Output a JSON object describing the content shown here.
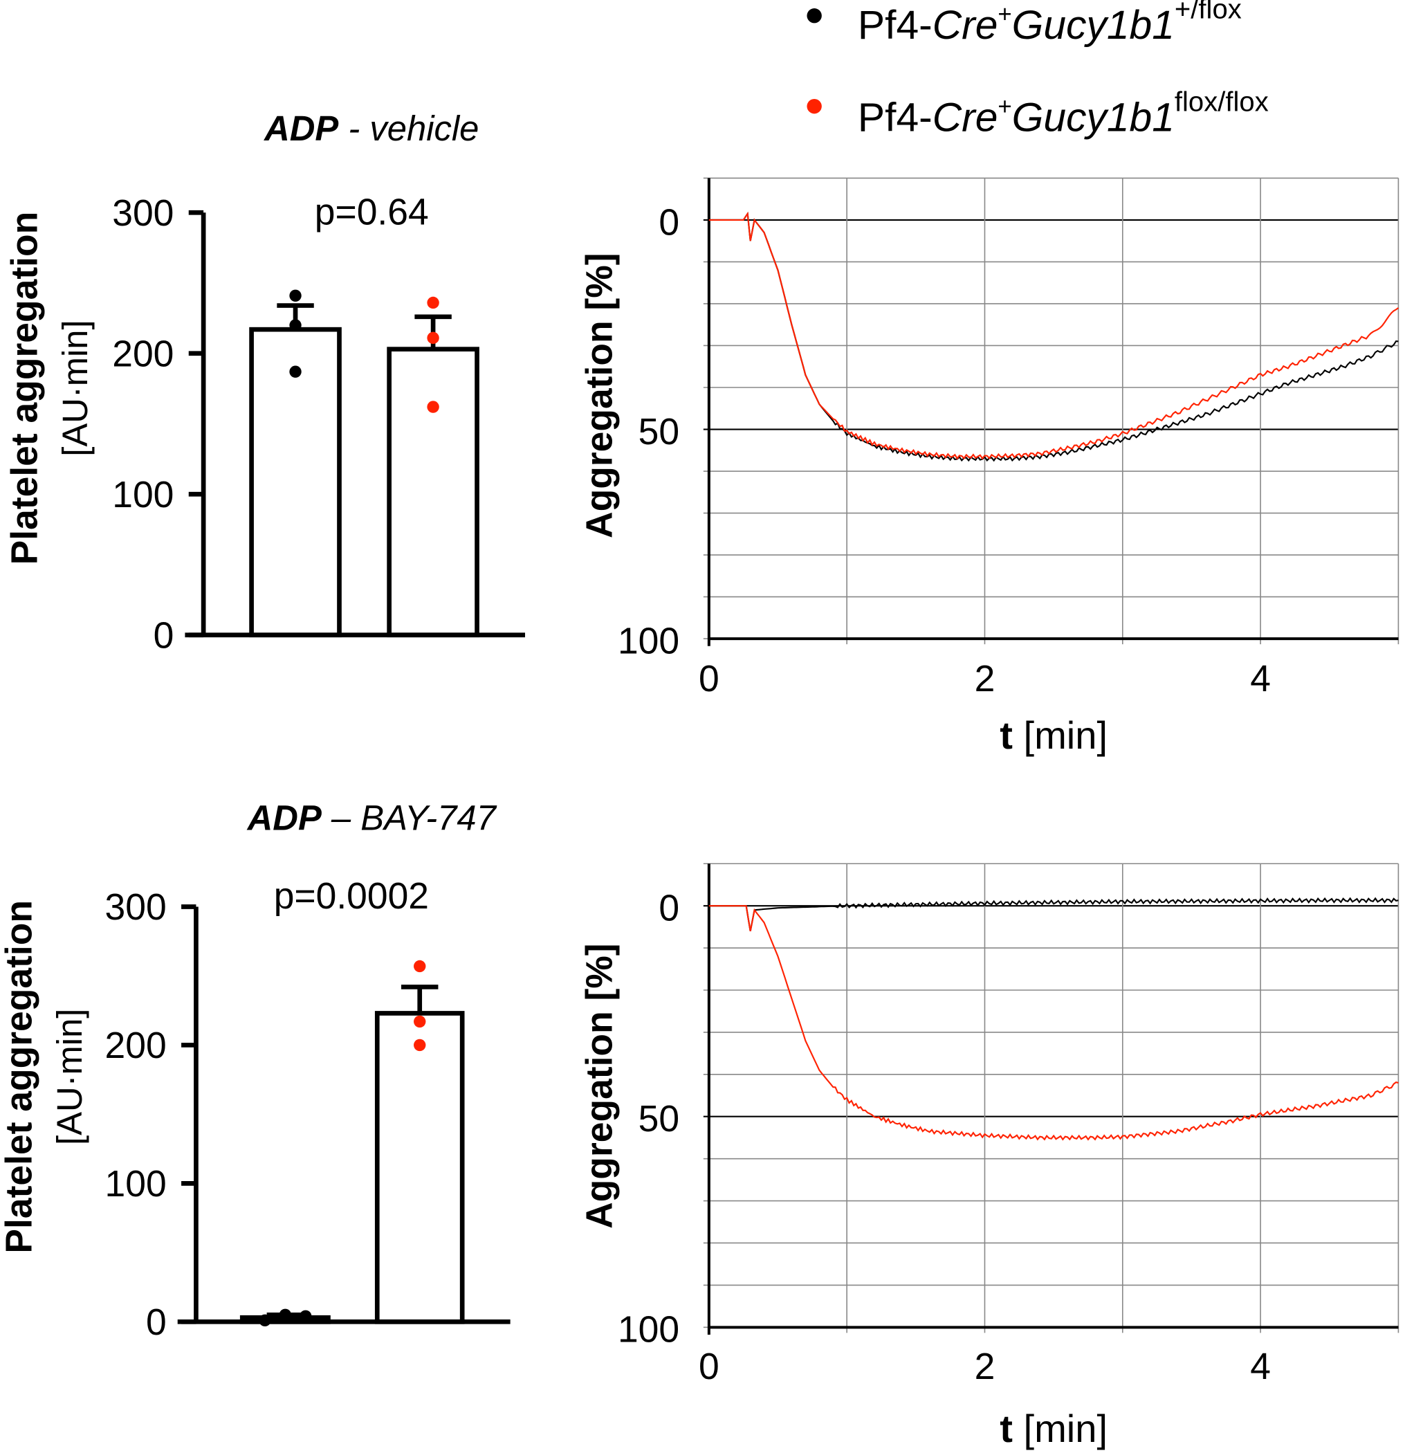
{
  "legend": {
    "items": [
      {
        "prefix": "Pf4-",
        "cre": "Cre",
        "plus": "+",
        "gene": "Gucy1b1",
        "allele": "+/flox",
        "color": "#000000"
      },
      {
        "prefix": "Pf4-",
        "cre": "Cre",
        "plus": "+",
        "gene": "Gucy1b1",
        "allele": "flox/flox",
        "color": "#ff2200"
      }
    ]
  },
  "chart_data": [
    {
      "type": "bar",
      "title_bold": "ADP",
      "title_rest": " - vehicle",
      "pvalue": "p=0.64",
      "ylabel": "Platelet aggregation",
      "ylabel2": "[AU·min]",
      "ylim": [
        0,
        300
      ],
      "yticks": [
        "0",
        "100",
        "200",
        "300"
      ],
      "categories": [
        "Pf4-Cre+Gucy1b1+/flox",
        "Pf4-Cre+Gucy1b1flox/flox"
      ],
      "values": [
        217,
        203
      ],
      "error_top": [
        234,
        226
      ],
      "points": [
        [
          241,
          220,
          187
        ],
        [
          236,
          211,
          162
        ]
      ],
      "colors": [
        "#000000",
        "#ff2200"
      ]
    },
    {
      "type": "line",
      "xlabel_bold": "t",
      "xlabel_rest": " [min]",
      "ylabel": "Aggregation [%]",
      "xlim": [
        0,
        5
      ],
      "ylim": [
        -10,
        100
      ],
      "y_inverted": true,
      "xticks": [
        "0",
        "2",
        "4"
      ],
      "yticks": [
        "0",
        "50",
        "100"
      ],
      "grid": true,
      "series": [
        {
          "name": "Pf4-Cre+Gucy1b1+/flox",
          "color": "#000000",
          "points": [
            [
              0,
              0
            ],
            [
              0.25,
              0
            ],
            [
              0.28,
              -1.5
            ],
            [
              0.3,
              5
            ],
            [
              0.33,
              0
            ],
            [
              0.4,
              3
            ],
            [
              0.5,
              12
            ],
            [
              0.6,
              25
            ],
            [
              0.7,
              37
            ],
            [
              0.8,
              44
            ],
            [
              0.9,
              48
            ],
            [
              1.0,
              51
            ],
            [
              1.2,
              54
            ],
            [
              1.4,
              55.5
            ],
            [
              1.6,
              56.5
            ],
            [
              1.8,
              57
            ],
            [
              2.0,
              57
            ],
            [
              2.2,
              57
            ],
            [
              2.4,
              56.5
            ],
            [
              2.6,
              55.5
            ],
            [
              2.8,
              54
            ],
            [
              3.0,
              52.5
            ],
            [
              3.2,
              50.5
            ],
            [
              3.4,
              48.5
            ],
            [
              3.6,
              46.5
            ],
            [
              3.8,
              44
            ],
            [
              4.0,
              41.5
            ],
            [
              4.2,
              39
            ],
            [
              4.4,
              37
            ],
            [
              4.6,
              35
            ],
            [
              4.8,
              32.5
            ],
            [
              5.0,
              29
            ]
          ]
        },
        {
          "name": "Pf4-Cre+Gucy1b1flox/flox",
          "color": "#ff2200",
          "points": [
            [
              0,
              0
            ],
            [
              0.25,
              0
            ],
            [
              0.28,
              -1.5
            ],
            [
              0.3,
              5
            ],
            [
              0.33,
              0
            ],
            [
              0.4,
              3
            ],
            [
              0.5,
              12
            ],
            [
              0.6,
              25
            ],
            [
              0.7,
              37
            ],
            [
              0.8,
              44
            ],
            [
              0.9,
              47.5
            ],
            [
              1.0,
              50.5
            ],
            [
              1.2,
              53.5
            ],
            [
              1.4,
              55
            ],
            [
              1.6,
              56
            ],
            [
              1.8,
              56.5
            ],
            [
              2.0,
              56.5
            ],
            [
              2.2,
              56.3
            ],
            [
              2.4,
              55.8
            ],
            [
              2.6,
              54.5
            ],
            [
              2.8,
              53
            ],
            [
              3.0,
              51
            ],
            [
              3.2,
              48.5
            ],
            [
              3.4,
              46
            ],
            [
              3.6,
              43
            ],
            [
              3.8,
              40
            ],
            [
              4.0,
              37
            ],
            [
              4.2,
              35
            ],
            [
              4.4,
              32.5
            ],
            [
              4.6,
              30
            ],
            [
              4.8,
              27.5
            ],
            [
              5.0,
              21
            ]
          ]
        }
      ]
    },
    {
      "type": "bar",
      "title_bold": "ADP",
      "title_rest": " – BAY-747",
      "pvalue": "p=0.0002",
      "ylabel": "Platelet aggregation",
      "ylabel2": "[AU·min]",
      "ylim": [
        0,
        300
      ],
      "yticks": [
        "0",
        "100",
        "200",
        "300"
      ],
      "categories": [
        "Pf4-Cre+Gucy1b1+/flox",
        "Pf4-Cre+Gucy1b1flox/flox"
      ],
      "values": [
        3,
        223
      ],
      "error_top": [
        5,
        242
      ],
      "points": [
        [
          1,
          5,
          4
        ],
        [
          257,
          217,
          200
        ]
      ],
      "colors": [
        "#000000",
        "#ff2200"
      ]
    },
    {
      "type": "line",
      "xlabel_bold": "t",
      "xlabel_rest": " [min]",
      "ylabel": "Aggregation [%]",
      "xlim": [
        0,
        5
      ],
      "ylim": [
        -10,
        100
      ],
      "y_inverted": true,
      "xticks": [
        "0",
        "2",
        "4"
      ],
      "yticks": [
        "0",
        "50",
        "100"
      ],
      "grid": true,
      "series": [
        {
          "name": "Pf4-Cre+Gucy1b1+/flox",
          "color": "#000000",
          "points": [
            [
              0,
              0
            ],
            [
              0.27,
              0
            ],
            [
              0.3,
              6
            ],
            [
              0.33,
              1
            ],
            [
              0.5,
              0.5
            ],
            [
              1.0,
              0
            ],
            [
              1.5,
              -0.3
            ],
            [
              2.0,
              -0.6
            ],
            [
              2.5,
              -0.8
            ],
            [
              3.0,
              -1
            ],
            [
              3.5,
              -1.1
            ],
            [
              4.0,
              -1.2
            ],
            [
              4.5,
              -1.3
            ],
            [
              5.0,
              -1.3
            ]
          ]
        },
        {
          "name": "Pf4-Cre+Gucy1b1flox/flox",
          "color": "#ff2200",
          "points": [
            [
              0,
              0
            ],
            [
              0.27,
              0
            ],
            [
              0.3,
              6
            ],
            [
              0.33,
              1
            ],
            [
              0.4,
              4
            ],
            [
              0.5,
              12
            ],
            [
              0.6,
              22
            ],
            [
              0.7,
              32
            ],
            [
              0.8,
              39
            ],
            [
              0.9,
              43
            ],
            [
              1.0,
              46
            ],
            [
              1.2,
              50
            ],
            [
              1.4,
              52
            ],
            [
              1.6,
              53.5
            ],
            [
              1.8,
              54
            ],
            [
              2.0,
              54.5
            ],
            [
              2.4,
              55
            ],
            [
              2.8,
              55
            ],
            [
              3.0,
              54.8
            ],
            [
              3.4,
              53.5
            ],
            [
              3.8,
              51
            ],
            [
              4.0,
              49.5
            ],
            [
              4.4,
              47.5
            ],
            [
              4.8,
              45
            ],
            [
              5.0,
              42
            ]
          ]
        }
      ]
    }
  ]
}
